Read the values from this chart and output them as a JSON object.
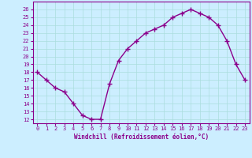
{
  "x": [
    0,
    1,
    2,
    3,
    4,
    5,
    6,
    7,
    8,
    9,
    10,
    11,
    12,
    13,
    14,
    15,
    16,
    17,
    18,
    19,
    20,
    21,
    22,
    23
  ],
  "y": [
    18,
    17,
    16,
    15.5,
    14,
    12.5,
    12,
    12,
    16.5,
    19.5,
    21,
    22,
    23,
    23.5,
    24,
    25,
    25.5,
    26,
    25.5,
    25,
    24,
    22,
    19,
    17
  ],
  "line_color": "#8B008B",
  "marker": "+",
  "marker_size": 4,
  "bg_color": "#cceeff",
  "grid_color": "#aadddd",
  "xlabel": "Windchill (Refroidissement éolien,°C)",
  "xlim": [
    -0.5,
    23.5
  ],
  "ylim": [
    11.5,
    27
  ],
  "yticks": [
    12,
    13,
    14,
    15,
    16,
    17,
    18,
    19,
    20,
    21,
    22,
    23,
    24,
    25,
    26
  ],
  "xticks": [
    0,
    1,
    2,
    3,
    4,
    5,
    6,
    7,
    8,
    9,
    10,
    11,
    12,
    13,
    14,
    15,
    16,
    17,
    18,
    19,
    20,
    21,
    22,
    23
  ],
  "tick_color": "#8B008B",
  "label_color": "#8B008B",
  "axis_color": "#8B008B",
  "tick_labelsize": 5,
  "xlabel_fontsize": 5.5,
  "linewidth": 1.0
}
